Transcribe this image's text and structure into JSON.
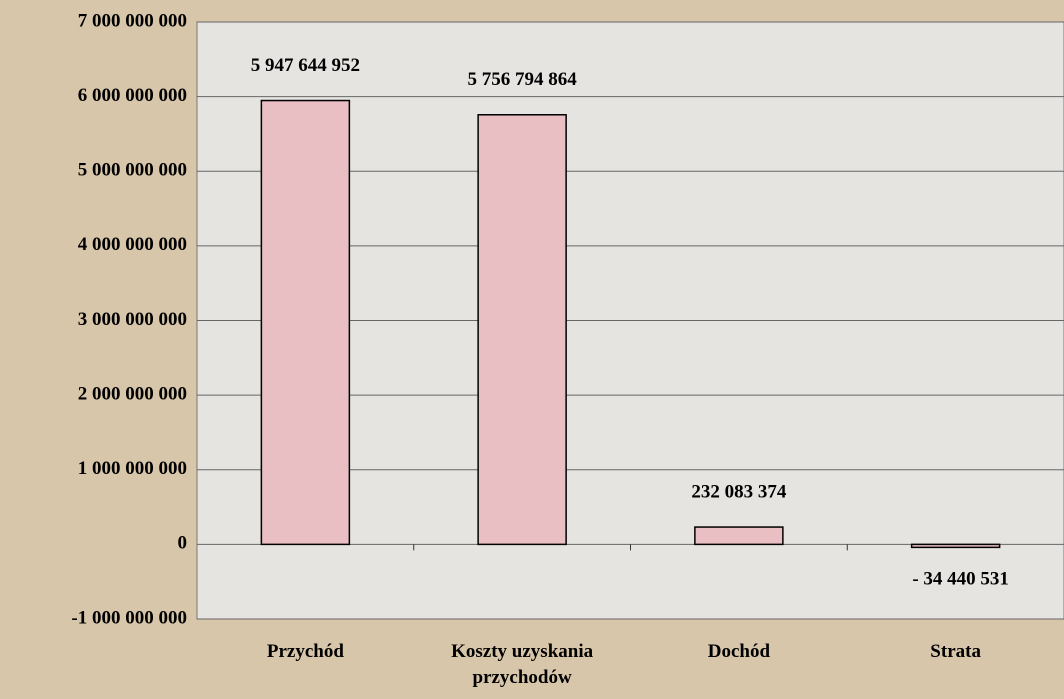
{
  "chart_data": {
    "type": "bar",
    "categories": [
      "Przychód",
      "Koszty uzyskania przychodów",
      "Dochód",
      "Strata"
    ],
    "values": [
      5947644952,
      5756794864,
      232083374,
      -34440531
    ],
    "value_labels": [
      "5 947 644 952",
      "5 756 794 864",
      "232 083 374",
      "- 34 440 531"
    ],
    "color": "#e9bfc3",
    "ylim": [
      -1000000000,
      7000000000
    ],
    "yticks": [
      {
        "value": -1000000000,
        "label": "-1 000 000 000"
      },
      {
        "value": 0,
        "label": "0"
      },
      {
        "value": 1000000000,
        "label": "1 000 000 000"
      },
      {
        "value": 2000000000,
        "label": "2 000 000 000"
      },
      {
        "value": 3000000000,
        "label": "3 000 000 000"
      },
      {
        "value": 4000000000,
        "label": "4 000 000 000"
      },
      {
        "value": 5000000000,
        "label": "5 000 000 000"
      },
      {
        "value": 6000000000,
        "label": "6 000 000 000"
      },
      {
        "value": 7000000000,
        "label": "7 000 000 000"
      }
    ],
    "grid": true
  }
}
